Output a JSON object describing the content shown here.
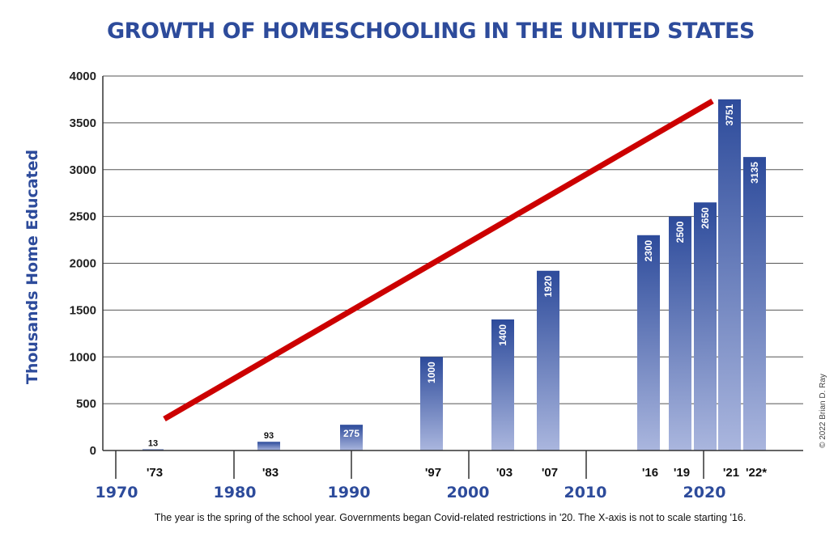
{
  "chart_data": {
    "type": "bar",
    "title": "GROWTH OF HOMESCHOOLING IN THE UNITED STATES",
    "xlabel": "",
    "ylabel": "Thousands Home Educated",
    "ylim": [
      0,
      4000
    ],
    "yticks": [
      0,
      500,
      1000,
      1500,
      2000,
      2500,
      3000,
      3500,
      4000
    ],
    "categories": [
      "'73",
      "'83",
      "1990",
      "'97",
      "'03",
      "'07",
      "'16",
      "'19",
      "2020",
      "'21",
      "'22*"
    ],
    "category_tick_labels": [
      "'73",
      "'83",
      "",
      "'97",
      "'03",
      "'07",
      "'16",
      "'19",
      "",
      "'21",
      "'22*"
    ],
    "values": [
      13,
      93,
      275,
      1000,
      1400,
      1920,
      2300,
      2500,
      2650,
      3751,
      3135
    ],
    "value_labels": [
      "13",
      "93",
      "275",
      "1000",
      "1400",
      "1920",
      "2300",
      "2500",
      "2650",
      "3751",
      "3135"
    ],
    "decade_labels": [
      "1970",
      "1980",
      "1990",
      "2000",
      "2010",
      "2020"
    ],
    "grid": true,
    "bar_color": "#2d4b9b",
    "bar_color_light": "#aab6de",
    "trend_line_color": "#cc0000",
    "footnote": "The year is the spring of the school year. Governments began Covid-related restrictions in '20. The X-axis is not to scale starting '16.",
    "copyright": "© 2022 Brian D. Ray"
  }
}
